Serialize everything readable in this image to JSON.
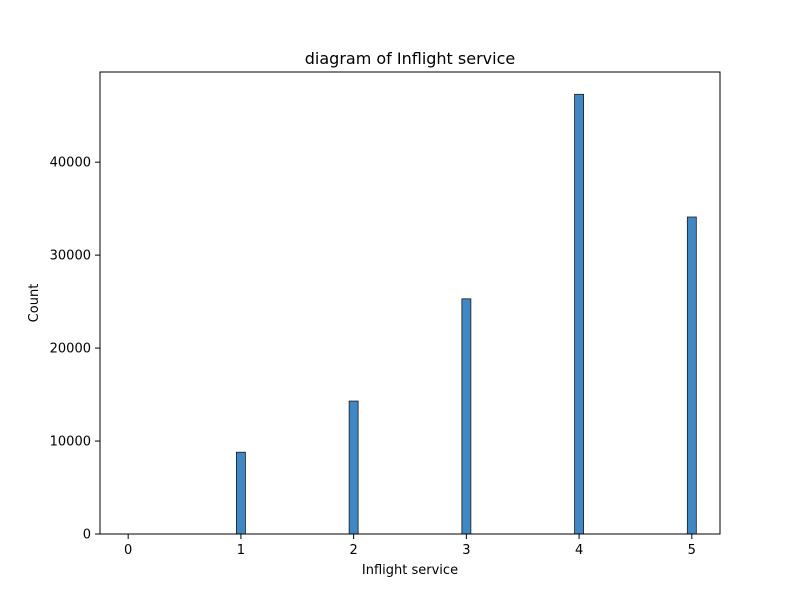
{
  "chart_data": {
    "type": "bar",
    "title": "diagram of Inflight service",
    "xlabel": "Inflight service",
    "ylabel": "Count",
    "x": [
      0,
      1,
      2,
      3,
      4,
      5
    ],
    "values": [
      3,
      8800,
      14300,
      25300,
      47300,
      34100
    ],
    "xlim": [
      -0.25,
      5.25
    ],
    "ylim": [
      0,
      49700
    ],
    "xticks": [
      "0",
      "1",
      "2",
      "3",
      "4",
      "5"
    ],
    "yticks": [
      "0",
      "10000",
      "20000",
      "30000",
      "40000"
    ],
    "grid": false,
    "legend": "none",
    "bar_color": "#3f88c5",
    "edge_color": "#1a1a1a"
  }
}
